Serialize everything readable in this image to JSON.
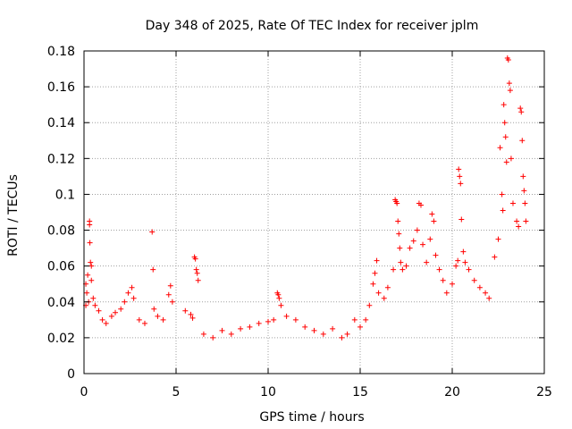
{
  "chart_data": {
    "type": "scatter",
    "title": "Day 348 of 2025, Rate Of TEC Index for receiver jplm",
    "xlabel": "GPS time / hours",
    "ylabel": "ROTI / TECUs",
    "xlim": [
      0,
      25
    ],
    "ylim": [
      0,
      0.18
    ],
    "xticks": [
      0,
      5,
      10,
      15,
      20,
      25
    ],
    "yticks": [
      0,
      0.02,
      0.04,
      0.06,
      0.08,
      0.1,
      0.12,
      0.14,
      0.16,
      0.18
    ],
    "xtick_labels": [
      "0",
      "5",
      "10",
      "15",
      "20",
      "25"
    ],
    "ytick_labels": [
      "0",
      "0.02",
      "0.04",
      "0.06",
      "0.08",
      "0.1",
      "0.12",
      "0.14",
      "0.16",
      "0.18"
    ],
    "grid": true,
    "marker": "plus",
    "series": [
      {
        "name": "ROTI",
        "color": "#ff0000",
        "points": [
          [
            0.1,
            0.05
          ],
          [
            0.1,
            0.038
          ],
          [
            0.15,
            0.045
          ],
          [
            0.2,
            0.055
          ],
          [
            0.25,
            0.04
          ],
          [
            0.3,
            0.085
          ],
          [
            0.3,
            0.083
          ],
          [
            0.32,
            0.073
          ],
          [
            0.35,
            0.062
          ],
          [
            0.4,
            0.06
          ],
          [
            0.4,
            0.052
          ],
          [
            0.5,
            0.042
          ],
          [
            0.6,
            0.038
          ],
          [
            0.8,
            0.035
          ],
          [
            1.0,
            0.03
          ],
          [
            1.2,
            0.028
          ],
          [
            1.5,
            0.032
          ],
          [
            1.7,
            0.034
          ],
          [
            2.0,
            0.036
          ],
          [
            2.2,
            0.04
          ],
          [
            2.4,
            0.045
          ],
          [
            2.6,
            0.048
          ],
          [
            2.7,
            0.042
          ],
          [
            3.0,
            0.03
          ],
          [
            3.3,
            0.028
          ],
          [
            3.7,
            0.079
          ],
          [
            3.75,
            0.058
          ],
          [
            3.8,
            0.036
          ],
          [
            4.0,
            0.032
          ],
          [
            4.3,
            0.03
          ],
          [
            4.6,
            0.044
          ],
          [
            4.7,
            0.049
          ],
          [
            4.8,
            0.04
          ],
          [
            5.5,
            0.035
          ],
          [
            5.8,
            0.033
          ],
          [
            5.9,
            0.031
          ],
          [
            6.0,
            0.065
          ],
          [
            6.05,
            0.064
          ],
          [
            6.1,
            0.058
          ],
          [
            6.15,
            0.056
          ],
          [
            6.2,
            0.052
          ],
          [
            6.5,
            0.022
          ],
          [
            7.0,
            0.02
          ],
          [
            7.5,
            0.024
          ],
          [
            8.0,
            0.022
          ],
          [
            8.5,
            0.025
          ],
          [
            9.0,
            0.026
          ],
          [
            9.5,
            0.028
          ],
          [
            10.0,
            0.029
          ],
          [
            10.3,
            0.03
          ],
          [
            10.5,
            0.045
          ],
          [
            10.55,
            0.044
          ],
          [
            10.6,
            0.042
          ],
          [
            10.7,
            0.038
          ],
          [
            11.0,
            0.032
          ],
          [
            11.5,
            0.03
          ],
          [
            12.0,
            0.026
          ],
          [
            12.5,
            0.024
          ],
          [
            13.0,
            0.022
          ],
          [
            13.5,
            0.025
          ],
          [
            14.0,
            0.02
          ],
          [
            14.3,
            0.022
          ],
          [
            14.7,
            0.03
          ],
          [
            15.0,
            0.026
          ],
          [
            15.3,
            0.03
          ],
          [
            15.5,
            0.038
          ],
          [
            15.7,
            0.05
          ],
          [
            15.8,
            0.056
          ],
          [
            15.9,
            0.063
          ],
          [
            16.0,
            0.045
          ],
          [
            16.3,
            0.042
          ],
          [
            16.5,
            0.048
          ],
          [
            16.8,
            0.058
          ],
          [
            16.9,
            0.097
          ],
          [
            16.95,
            0.096
          ],
          [
            17.0,
            0.095
          ],
          [
            17.05,
            0.085
          ],
          [
            17.1,
            0.078
          ],
          [
            17.15,
            0.07
          ],
          [
            17.2,
            0.062
          ],
          [
            17.3,
            0.058
          ],
          [
            17.5,
            0.06
          ],
          [
            17.7,
            0.07
          ],
          [
            17.9,
            0.074
          ],
          [
            18.1,
            0.08
          ],
          [
            18.2,
            0.095
          ],
          [
            18.3,
            0.094
          ],
          [
            18.4,
            0.072
          ],
          [
            18.6,
            0.062
          ],
          [
            18.8,
            0.075
          ],
          [
            18.9,
            0.089
          ],
          [
            19.0,
            0.085
          ],
          [
            19.1,
            0.066
          ],
          [
            19.3,
            0.058
          ],
          [
            19.5,
            0.052
          ],
          [
            19.7,
            0.045
          ],
          [
            20.0,
            0.05
          ],
          [
            20.2,
            0.06
          ],
          [
            20.3,
            0.063
          ],
          [
            20.35,
            0.114
          ],
          [
            20.4,
            0.11
          ],
          [
            20.45,
            0.106
          ],
          [
            20.5,
            0.086
          ],
          [
            20.6,
            0.068
          ],
          [
            20.7,
            0.062
          ],
          [
            20.9,
            0.058
          ],
          [
            21.2,
            0.052
          ],
          [
            21.5,
            0.048
          ],
          [
            21.8,
            0.045
          ],
          [
            22.0,
            0.042
          ],
          [
            22.3,
            0.065
          ],
          [
            22.5,
            0.075
          ],
          [
            22.6,
            0.126
          ],
          [
            22.7,
            0.1
          ],
          [
            22.75,
            0.091
          ],
          [
            22.8,
            0.15
          ],
          [
            22.85,
            0.14
          ],
          [
            22.9,
            0.132
          ],
          [
            22.95,
            0.118
          ],
          [
            23.0,
            0.176
          ],
          [
            23.05,
            0.175
          ],
          [
            23.1,
            0.162
          ],
          [
            23.15,
            0.158
          ],
          [
            23.2,
            0.12
          ],
          [
            23.3,
            0.095
          ],
          [
            23.5,
            0.085
          ],
          [
            23.6,
            0.082
          ],
          [
            23.7,
            0.148
          ],
          [
            23.75,
            0.146
          ],
          [
            23.8,
            0.13
          ],
          [
            23.85,
            0.11
          ],
          [
            23.9,
            0.102
          ],
          [
            23.95,
            0.095
          ],
          [
            24.0,
            0.085
          ]
        ]
      }
    ]
  }
}
